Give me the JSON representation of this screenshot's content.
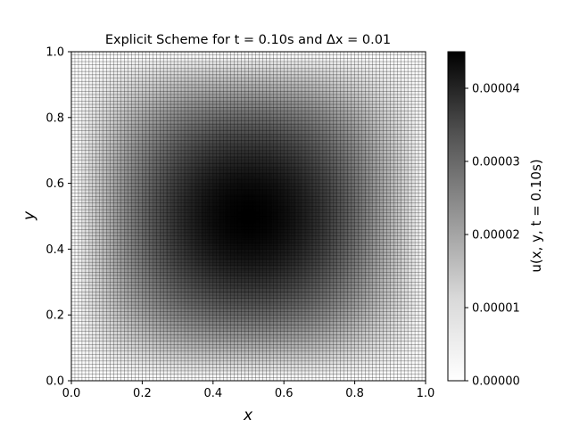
{
  "chart_data": {
    "type": "heatmap",
    "title": "Explicit Scheme for t = 0.10s and Δx = 0.01",
    "xlabel": "x",
    "ylabel": "y",
    "xlim": [
      0.0,
      1.0
    ],
    "ylim": [
      0.0,
      1.0
    ],
    "x_ticks": [
      "0.0",
      "0.2",
      "0.4",
      "0.6",
      "0.8",
      "1.0"
    ],
    "y_ticks": [
      "0.0",
      "0.2",
      "0.4",
      "0.6",
      "0.8",
      "1.0"
    ],
    "grid_spacing": 0.01,
    "grid_edge_color": "#000000",
    "colormap": "Greys",
    "colorbar": {
      "label": "u(x, y, t = 0.10s)",
      "range": [
        0.0,
        4.5e-05
      ],
      "ticks": [
        "0.00000",
        "0.00001",
        "0.00002",
        "0.00003",
        "0.00004"
      ],
      "tick_values": [
        0.0,
        1e-05,
        2e-05,
        3e-05,
        4e-05
      ]
    },
    "field": {
      "description_shape": "u = umax * sin(pi x) * sin(pi y)",
      "peak_location": [
        0.5,
        0.5
      ],
      "max": 4.5e-05,
      "boundary_value": 0.0
    }
  }
}
